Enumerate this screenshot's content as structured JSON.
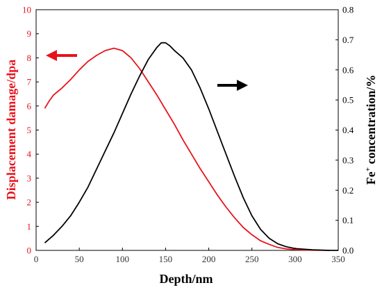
{
  "chart_data": {
    "type": "line",
    "xlabel": "Depth/nm",
    "ylabel_left": "Displacement damage/dpa",
    "ylabel_right_base": "Fe",
    "ylabel_right_sup": "+",
    "ylabel_right_rest": " concentration/%",
    "xlim": [
      0,
      350
    ],
    "ylim_left": [
      0,
      10
    ],
    "ylim_right": [
      0,
      0.8
    ],
    "x_ticks": [
      "0",
      "50",
      "100",
      "150",
      "200",
      "250",
      "300",
      "350"
    ],
    "y_left_ticks": [
      "0",
      "1",
      "2",
      "3",
      "4",
      "5",
      "6",
      "7",
      "8",
      "9",
      "10"
    ],
    "y_right_ticks": [
      "0.0",
      "0.1",
      "0.2",
      "0.3",
      "0.4",
      "0.5",
      "0.6",
      "0.7",
      "0.8"
    ],
    "grid": false,
    "colors": {
      "left_axis": "#e8121b",
      "right_axis": "#000000"
    },
    "series": [
      {
        "axis": "left",
        "color": "#e8121b",
        "points": [
          [
            10,
            5.9
          ],
          [
            15,
            6.2
          ],
          [
            20,
            6.45
          ],
          [
            25,
            6.6
          ],
          [
            30,
            6.75
          ],
          [
            40,
            7.1
          ],
          [
            50,
            7.5
          ],
          [
            60,
            7.85
          ],
          [
            70,
            8.1
          ],
          [
            80,
            8.3
          ],
          [
            90,
            8.4
          ],
          [
            100,
            8.3
          ],
          [
            110,
            8.0
          ],
          [
            120,
            7.55
          ],
          [
            130,
            7.0
          ],
          [
            140,
            6.45
          ],
          [
            150,
            5.85
          ],
          [
            160,
            5.25
          ],
          [
            170,
            4.6
          ],
          [
            180,
            4.0
          ],
          [
            190,
            3.4
          ],
          [
            200,
            2.85
          ],
          [
            210,
            2.3
          ],
          [
            220,
            1.8
          ],
          [
            230,
            1.35
          ],
          [
            240,
            0.95
          ],
          [
            250,
            0.65
          ],
          [
            260,
            0.4
          ],
          [
            270,
            0.25
          ],
          [
            280,
            0.12
          ],
          [
            290,
            0.06
          ],
          [
            300,
            0.03
          ],
          [
            320,
            0.01
          ],
          [
            340,
            0.0
          ]
        ]
      },
      {
        "axis": "right",
        "color": "#000000",
        "points": [
          [
            10,
            0.025
          ],
          [
            20,
            0.05
          ],
          [
            30,
            0.08
          ],
          [
            40,
            0.115
          ],
          [
            50,
            0.16
          ],
          [
            60,
            0.21
          ],
          [
            70,
            0.27
          ],
          [
            80,
            0.33
          ],
          [
            90,
            0.39
          ],
          [
            100,
            0.455
          ],
          [
            110,
            0.52
          ],
          [
            120,
            0.58
          ],
          [
            130,
            0.635
          ],
          [
            140,
            0.675
          ],
          [
            145,
            0.69
          ],
          [
            150,
            0.69
          ],
          [
            155,
            0.68
          ],
          [
            160,
            0.665
          ],
          [
            170,
            0.64
          ],
          [
            180,
            0.6
          ],
          [
            190,
            0.54
          ],
          [
            200,
            0.47
          ],
          [
            210,
            0.395
          ],
          [
            220,
            0.32
          ],
          [
            230,
            0.245
          ],
          [
            240,
            0.175
          ],
          [
            250,
            0.115
          ],
          [
            260,
            0.07
          ],
          [
            270,
            0.04
          ],
          [
            280,
            0.022
          ],
          [
            290,
            0.012
          ],
          [
            300,
            0.006
          ],
          [
            320,
            0.002
          ],
          [
            340,
            0.0
          ],
          [
            350,
            0.0
          ]
        ]
      }
    ],
    "arrows": [
      {
        "direction": "left",
        "color": "#e8121b",
        "target_axis": "left"
      },
      {
        "direction": "right",
        "color": "#000000",
        "target_axis": "right"
      }
    ]
  }
}
